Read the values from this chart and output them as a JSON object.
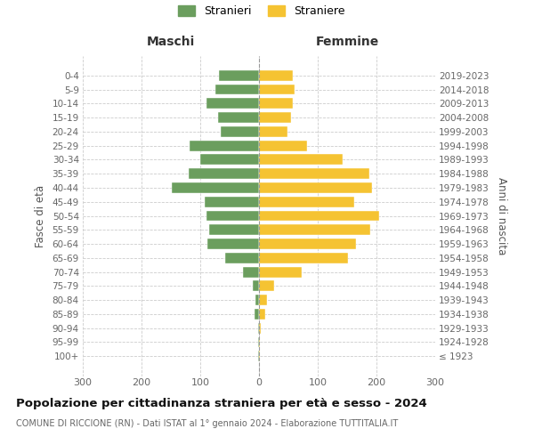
{
  "age_groups": [
    "100+",
    "95-99",
    "90-94",
    "85-89",
    "80-84",
    "75-79",
    "70-74",
    "65-69",
    "60-64",
    "55-59",
    "50-54",
    "45-49",
    "40-44",
    "35-39",
    "30-34",
    "25-29",
    "20-24",
    "15-19",
    "10-14",
    "5-9",
    "0-4"
  ],
  "birth_years": [
    "≤ 1923",
    "1924-1928",
    "1929-1933",
    "1934-1938",
    "1939-1943",
    "1944-1948",
    "1949-1953",
    "1954-1958",
    "1959-1963",
    "1964-1968",
    "1969-1973",
    "1974-1978",
    "1979-1983",
    "1984-1988",
    "1989-1993",
    "1994-1998",
    "1999-2003",
    "2004-2008",
    "2009-2013",
    "2014-2018",
    "2019-2023"
  ],
  "maschi": [
    1,
    1,
    2,
    7,
    6,
    10,
    28,
    58,
    88,
    85,
    90,
    92,
    148,
    120,
    100,
    118,
    65,
    70,
    90,
    75,
    68
  ],
  "femmine": [
    1,
    2,
    3,
    10,
    14,
    25,
    72,
    152,
    165,
    190,
    205,
    162,
    192,
    188,
    143,
    82,
    48,
    55,
    58,
    60,
    58
  ],
  "maschi_color": "#6b9e5e",
  "femmine_color": "#f5c332",
  "title": "Popolazione per cittadinanza straniera per età e sesso - 2024",
  "subtitle": "COMUNE DI RICCIONE (RN) - Dati ISTAT al 1° gennaio 2024 - Elaborazione TUTTITALIA.IT",
  "label_maschi": "Maschi",
  "label_femmine": "Femmine",
  "ylabel_left": "Fasce di età",
  "ylabel_right": "Anni di nascita",
  "legend_stranieri": "Stranieri",
  "legend_straniere": "Straniere",
  "xlim": 300,
  "background_color": "#ffffff",
  "grid_color": "#cccccc",
  "bar_height": 0.75,
  "fig_width": 6.0,
  "fig_height": 5.0,
  "dpi": 100
}
